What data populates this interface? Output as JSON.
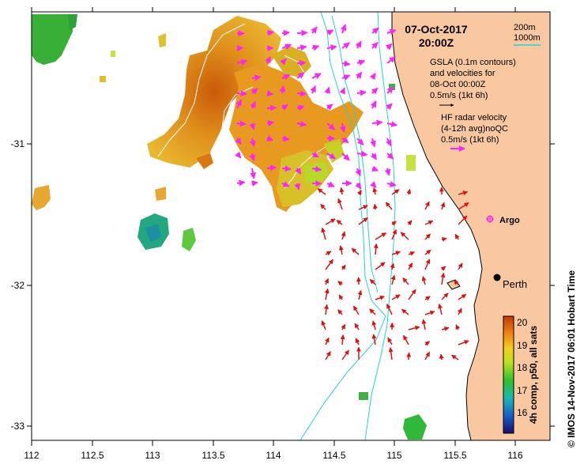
{
  "title": {
    "date": "07-Oct-2017",
    "time": "20:00Z"
  },
  "legend": {
    "depth_200": "200m",
    "depth_1000": "1000m",
    "gsla_line1": "GSLA (0.1m contours)",
    "gsla_line2": "and velocities for",
    "gsla_line3": "08-Oct 00:00Z",
    "gsla_scale": "0.5m/s (1kt 6h)",
    "hf_line1": "HF radar velocity",
    "hf_line2": "(4-12h avg)noQC",
    "hf_scale": "0.5m/s (1kt 6h)"
  },
  "places": {
    "argo": "Argo",
    "perth": "Perth"
  },
  "axes": {
    "x_ticks": [
      "112",
      "112.5",
      "113",
      "113.5",
      "114",
      "114.5",
      "115",
      "115.5",
      "116"
    ],
    "y_ticks": [
      "-31",
      "-32",
      "-33"
    ]
  },
  "colorbar": {
    "ticks": [
      "20",
      "19",
      "18",
      "17",
      "16"
    ],
    "label": "4h comp, p50, all sats"
  },
  "credit": "© IMOS 14-Nov-2017 06:01 Hobart Time",
  "colors": {
    "land": "#f9c8a0",
    "isobath": "#22d3d8",
    "hf_vectors": "#ff22ff",
    "gsla_vectors": "#e01010",
    "argo": "#ff22ff"
  }
}
